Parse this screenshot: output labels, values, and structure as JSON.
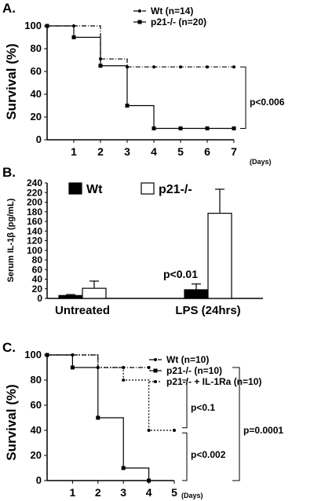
{
  "panels": {
    "a": {
      "letter": "A.",
      "stat": "p<0.006"
    },
    "b": {
      "letter": "B."
    },
    "c": {
      "letter": "C.",
      "stat1": "p<0.1",
      "stat2": "p<0.002",
      "stat3": "p=0.0001"
    }
  },
  "colors": {
    "line": "#000000",
    "wt_bar": "#000000",
    "ko_bar": "#ffffff"
  },
  "chart_data": [
    {
      "type": "line",
      "title": "",
      "xlabel": "",
      "x_unit": "(Days)",
      "ylabel": "Survival (%)",
      "ylim": [
        0,
        100
      ],
      "xlim": [
        0,
        7
      ],
      "x_ticks": [
        1,
        2,
        3,
        4,
        5,
        6,
        7
      ],
      "y_ticks": [
        0,
        20,
        40,
        60,
        80,
        100
      ],
      "step": true,
      "series": [
        {
          "name": "Wt (n=14)",
          "style": "dash-dot",
          "x": [
            0,
            1,
            2,
            3,
            4,
            5,
            6,
            7
          ],
          "y": [
            100,
            100,
            71,
            64,
            64,
            64,
            64,
            64
          ]
        },
        {
          "name": "p21-/- (n=20)",
          "style": "solid",
          "x": [
            0,
            1,
            2,
            3,
            4,
            5,
            6,
            7
          ],
          "y": [
            100,
            90,
            65,
            30,
            10,
            10,
            10,
            10
          ]
        }
      ],
      "annotations": [
        "p<0.006"
      ]
    },
    {
      "type": "bar",
      "title": "",
      "ylabel": "Serum IL-1β (pg/mL)",
      "ylim": [
        0,
        240
      ],
      "y_ticks": [
        0,
        20,
        40,
        60,
        80,
        100,
        120,
        140,
        160,
        180,
        200,
        220,
        240
      ],
      "categories": [
        "Untreated",
        "LPS (24hrs)"
      ],
      "series": [
        {
          "name": "Wt",
          "values": [
            6,
            18
          ],
          "errors": [
            2,
            12
          ]
        },
        {
          "name": "p21-/-",
          "values": [
            21,
            177
          ],
          "errors": [
            15,
            50
          ]
        }
      ],
      "annotations": [
        "p<0.01"
      ]
    },
    {
      "type": "line",
      "title": "",
      "xlabel": "",
      "x_unit": "(Days)",
      "ylabel": "Survival (%)",
      "ylim": [
        0,
        100
      ],
      "xlim": [
        0,
        5
      ],
      "x_ticks": [
        1,
        2,
        3,
        4,
        5
      ],
      "y_ticks": [
        0,
        20,
        40,
        60,
        80,
        100
      ],
      "step": true,
      "series": [
        {
          "name": "Wt (n=10)",
          "style": "dash-dot",
          "x": [
            0,
            1,
            2,
            3,
            4
          ],
          "y": [
            100,
            100,
            90,
            90,
            90
          ]
        },
        {
          "name": "p21-/- (n=10)",
          "style": "solid",
          "x": [
            0,
            1,
            2,
            3,
            4
          ],
          "y": [
            100,
            90,
            50,
            10,
            0
          ]
        },
        {
          "name": "p21-/- + IL-1Ra (n=10)",
          "style": "dotted",
          "x": [
            0,
            1,
            2,
            3,
            4,
            5
          ],
          "y": [
            100,
            100,
            90,
            80,
            40,
            40
          ]
        }
      ],
      "annotations": [
        "p<0.1",
        "p<0.002",
        "p=0.0001"
      ]
    }
  ]
}
